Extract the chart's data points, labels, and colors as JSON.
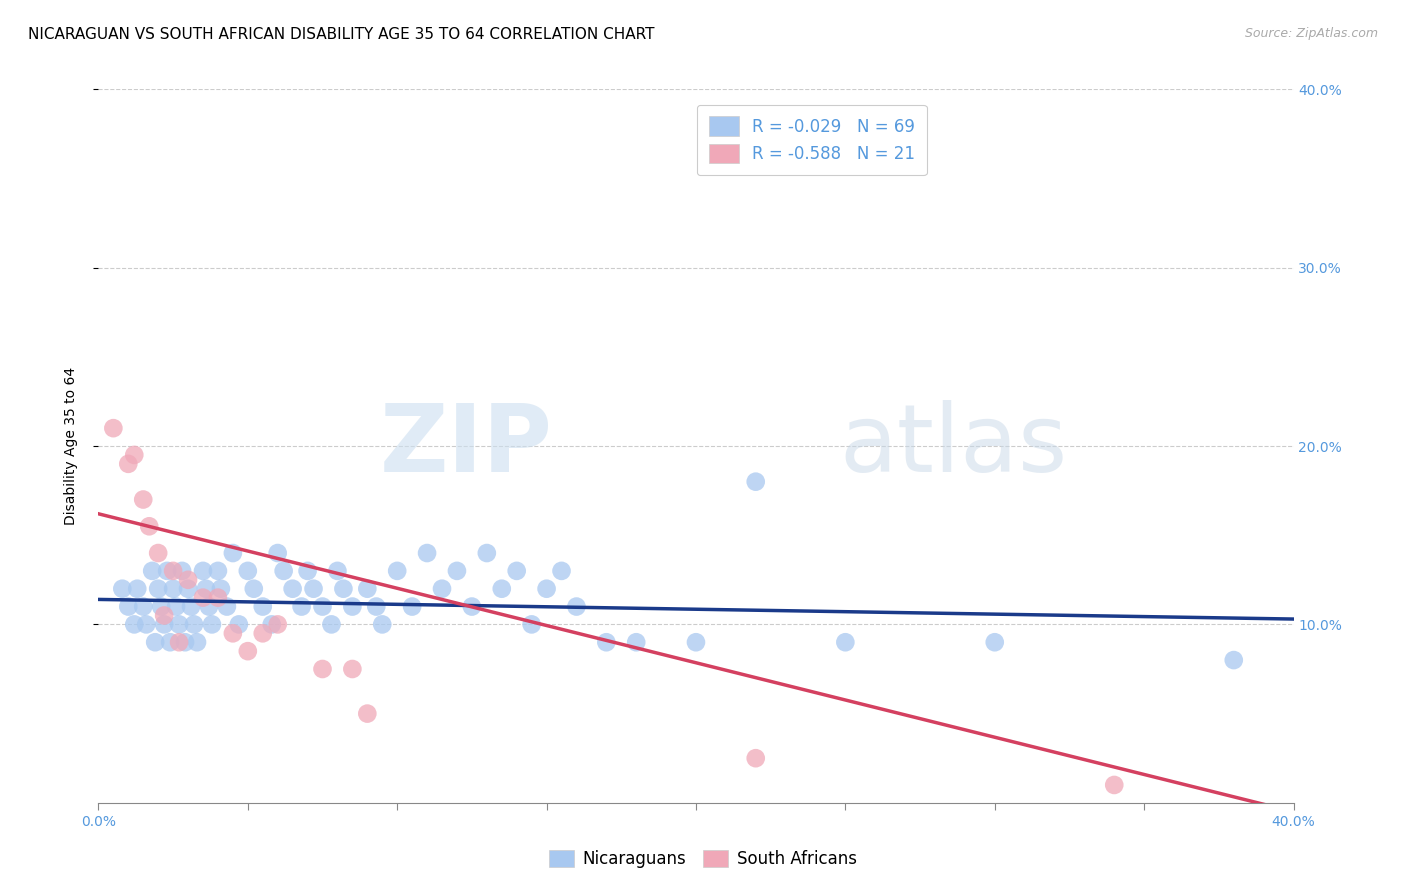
{
  "title": "NICARAGUAN VS SOUTH AFRICAN DISABILITY AGE 35 TO 64 CORRELATION CHART",
  "source": "Source: ZipAtlas.com",
  "ylabel": "Disability Age 35 to 64",
  "xlim": [
    0.0,
    0.4
  ],
  "ylim": [
    0.0,
    0.4
  ],
  "xticks": [
    0.0,
    0.05,
    0.1,
    0.15,
    0.2,
    0.25,
    0.3,
    0.35,
    0.4
  ],
  "yticks": [
    0.1,
    0.2,
    0.3,
    0.4
  ],
  "ytick_labels": [
    "10.0%",
    "20.0%",
    "30.0%",
    "40.0%"
  ],
  "blue_R": -0.029,
  "blue_N": 69,
  "pink_R": -0.588,
  "pink_N": 21,
  "blue_color": "#a8c8f0",
  "pink_color": "#f0a8b8",
  "blue_line_color": "#1a3a8a",
  "pink_line_color": "#d44060",
  "watermark_zip": "ZIP",
  "watermark_atlas": "atlas",
  "blue_scatter_x": [
    0.008,
    0.01,
    0.012,
    0.013,
    0.015,
    0.016,
    0.018,
    0.019,
    0.02,
    0.021,
    0.022,
    0.023,
    0.024,
    0.025,
    0.026,
    0.027,
    0.028,
    0.029,
    0.03,
    0.031,
    0.032,
    0.033,
    0.035,
    0.036,
    0.037,
    0.038,
    0.04,
    0.041,
    0.043,
    0.045,
    0.047,
    0.05,
    0.052,
    0.055,
    0.058,
    0.06,
    0.062,
    0.065,
    0.068,
    0.07,
    0.072,
    0.075,
    0.078,
    0.08,
    0.082,
    0.085,
    0.09,
    0.093,
    0.095,
    0.1,
    0.105,
    0.11,
    0.115,
    0.12,
    0.125,
    0.13,
    0.135,
    0.14,
    0.145,
    0.15,
    0.155,
    0.16,
    0.17,
    0.18,
    0.2,
    0.22,
    0.25,
    0.3,
    0.38
  ],
  "blue_scatter_y": [
    0.12,
    0.11,
    0.1,
    0.12,
    0.11,
    0.1,
    0.13,
    0.09,
    0.12,
    0.11,
    0.1,
    0.13,
    0.09,
    0.12,
    0.11,
    0.1,
    0.13,
    0.09,
    0.12,
    0.11,
    0.1,
    0.09,
    0.13,
    0.12,
    0.11,
    0.1,
    0.13,
    0.12,
    0.11,
    0.14,
    0.1,
    0.13,
    0.12,
    0.11,
    0.1,
    0.14,
    0.13,
    0.12,
    0.11,
    0.13,
    0.12,
    0.11,
    0.1,
    0.13,
    0.12,
    0.11,
    0.12,
    0.11,
    0.1,
    0.13,
    0.11,
    0.14,
    0.12,
    0.13,
    0.11,
    0.14,
    0.12,
    0.13,
    0.1,
    0.12,
    0.13,
    0.11,
    0.09,
    0.09,
    0.09,
    0.18,
    0.09,
    0.09,
    0.08
  ],
  "pink_scatter_x": [
    0.005,
    0.01,
    0.012,
    0.015,
    0.017,
    0.02,
    0.022,
    0.025,
    0.027,
    0.03,
    0.035,
    0.04,
    0.045,
    0.05,
    0.055,
    0.06,
    0.075,
    0.085,
    0.09,
    0.22,
    0.34
  ],
  "pink_scatter_y": [
    0.21,
    0.19,
    0.195,
    0.17,
    0.155,
    0.14,
    0.105,
    0.13,
    0.09,
    0.125,
    0.115,
    0.115,
    0.095,
    0.085,
    0.095,
    0.1,
    0.075,
    0.075,
    0.05,
    0.025,
    0.01
  ],
  "blue_line_x": [
    0.0,
    0.4
  ],
  "blue_line_y": [
    0.114,
    0.103
  ],
  "pink_line_x": [
    0.0,
    0.4
  ],
  "pink_line_y": [
    0.162,
    -0.005
  ],
  "grid_color": "#cccccc",
  "background_color": "#ffffff",
  "title_fontsize": 11,
  "tick_color": "#5599dd",
  "tick_fontsize": 10,
  "legend_text_color": "#5599dd"
}
